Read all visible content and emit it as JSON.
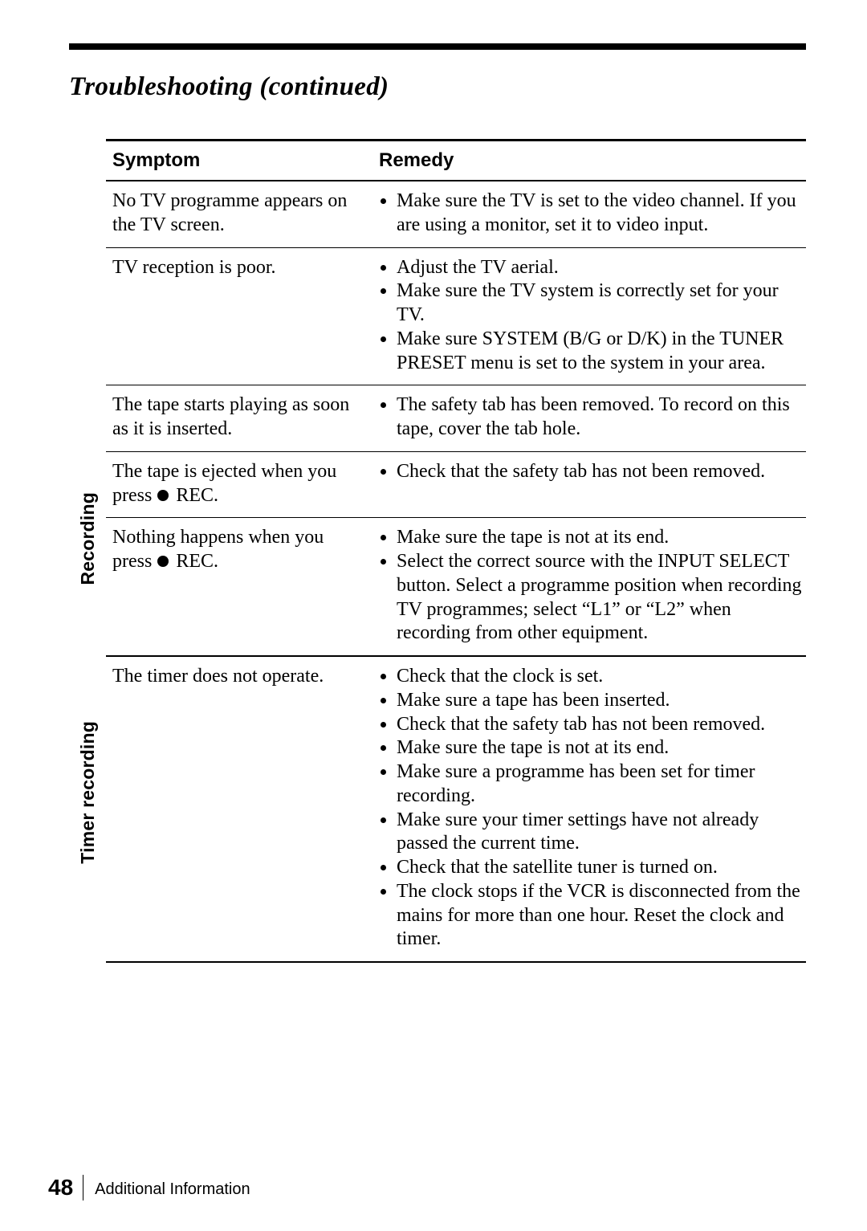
{
  "page_title": "Troubleshooting (continued)",
  "headers": {
    "symptom": "Symptom",
    "remedy": "Remedy"
  },
  "sections": [
    {
      "label": "Recording",
      "rows": [
        {
          "symptom": "No TV programme appears on the TV screen.",
          "remedy": [
            "Make sure the TV is set to the video channel.  If you are using a monitor, set it to video input."
          ]
        },
        {
          "symptom": "TV reception is poor.",
          "remedy": [
            "Adjust the TV aerial.",
            "Make sure the TV system is correctly set for your TV.",
            "Make sure SYSTEM (B/G or D/K) in the TUNER PRESET menu is set to the system in your area."
          ]
        },
        {
          "symptom": "The tape starts playing as soon as it is inserted.",
          "remedy": [
            "The safety tab has been removed.  To record on this tape, cover the tab hole."
          ]
        },
        {
          "symptom_html": "The tape is ejected when you press <span class=\"rec-dot\"></span> REC.",
          "remedy": [
            "Check that the safety tab has not been removed."
          ]
        },
        {
          "symptom_html": "Nothing happens when you press <span class=\"rec-dot\"></span> REC.",
          "remedy": [
            "Make sure the tape is not at its end.",
            "Select the correct source with the INPUT SELECT button.  Select a programme position when recording TV programmes; select “L1” or “L2” when recording from other equipment."
          ]
        }
      ]
    },
    {
      "label": "Timer recording",
      "rows": [
        {
          "symptom": "The timer does not operate.",
          "remedy": [
            "Check that the clock is set.",
            "Make sure a tape has been inserted.",
            "Check that the safety tab has not been removed.",
            "Make sure the tape is not at its end.",
            "Make sure a programme has been set for timer recording.",
            "Make sure your timer settings have not already passed the current time.",
            "Check that the satellite tuner is turned on.",
            "The clock stops if the VCR is disconnected from the mains for more than one hour.  Reset the clock and timer."
          ]
        }
      ]
    }
  ],
  "footer": {
    "page_number": "48",
    "section_label": "Additional Information"
  },
  "rail_heights": {
    "head_h": 53,
    "sec0_rows": [
      72,
      129,
      72,
      73,
      163
    ],
    "sec1_rows": [
      347
    ]
  }
}
